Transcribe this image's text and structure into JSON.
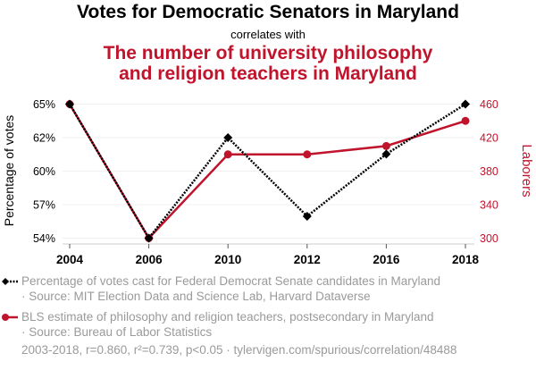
{
  "chart_data": {
    "type": "line",
    "title": "Votes for Democratic Senators in Maryland",
    "subtitle": "correlates with",
    "title2_lines": [
      "The number of university philosophy",
      "and religion teachers in Maryland"
    ],
    "categories": [
      "2004",
      "2006",
      "2010",
      "2012",
      "2016",
      "2018"
    ],
    "ylabel": "Percentage of votes",
    "y2label": "Laborers",
    "ylim": [
      54,
      65
    ],
    "y2lim": [
      300,
      460
    ],
    "yticks": [
      54,
      56.75,
      59.5,
      62.25,
      65
    ],
    "ytick_labels": [
      "54%",
      "57%",
      "60%",
      "62%",
      "65%"
    ],
    "y2ticks": [
      300,
      340,
      380,
      420,
      460
    ],
    "y2tick_labels": [
      "300",
      "340",
      "380",
      "420",
      "460"
    ],
    "series": [
      {
        "name": "Percentage of votes cast for Federal Democrat Senate candidates in Maryland",
        "source": "· Source: MIT Election Data and Science Lab, Harvard Dataverse",
        "axis": "left",
        "color": "#000000",
        "values": [
          65.0,
          54.0,
          62.25,
          55.8,
          60.9,
          65.0
        ]
      },
      {
        "name": "BLS estimate of philosophy and religion teachers, postsecondary in Maryland",
        "source": "· Source: Bureau of Labor Statistics",
        "axis": "right",
        "color": "#c0142c",
        "values": [
          460,
          300,
          400,
          400,
          410,
          440
        ]
      }
    ],
    "footer": "2003-2018, r=0.860, r²=0.739, p<0.05 · tylervigen.com/spurious/correlation/48488"
  }
}
